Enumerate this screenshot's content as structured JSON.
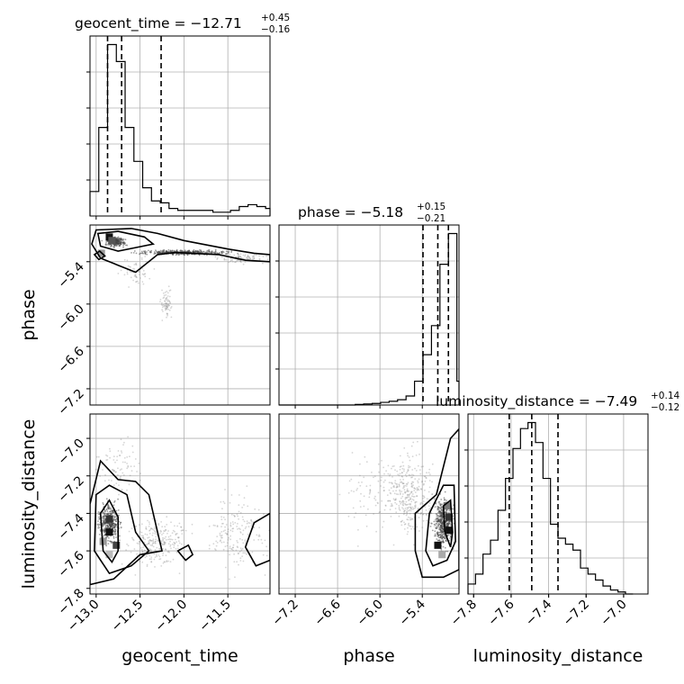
{
  "chart_data": {
    "type": "corner",
    "parameters": [
      "geocent_time",
      "phase",
      "luminosity_distance"
    ],
    "ranges": {
      "geocent_time": [
        -13.07,
        -11.02
      ],
      "phase": [
        -7.43,
        -4.88
      ],
      "luminosity_distance": [
        -7.83,
        -6.87
      ]
    },
    "ticks": {
      "geocent_time": [
        -13.0,
        -12.5,
        -12.0,
        -11.5
      ],
      "phase": [
        -7.2,
        -6.6,
        -6.0,
        -5.4
      ],
      "luminosity_distance": [
        -7.8,
        -7.6,
        -7.4,
        -7.2,
        -7.0
      ]
    },
    "tick_labels": {
      "geocent_time": [
        "−13.0",
        "−12.5",
        "−12.0",
        "−11.5"
      ],
      "phase": [
        "−7.2",
        "−6.6",
        "−6.0",
        "−5.4"
      ],
      "luminosity_distance": [
        "−7.8",
        "−7.6",
        "−7.4",
        "−7.2",
        "−7.0"
      ]
    },
    "titles": {
      "geocent_time": {
        "prefix": "geocent_time = −12.71",
        "plus": "+0.45",
        "minus": "−0.16"
      },
      "phase": {
        "prefix": "phase = −5.18",
        "plus": "+0.15",
        "minus": "−0.21"
      },
      "luminosity_distance": {
        "prefix": "luminosity_distance = −7.49",
        "plus": "+0.14",
        "minus": "−0.12"
      }
    },
    "quantiles": {
      "geocent_time": [
        -12.87,
        -12.71,
        -12.26
      ],
      "phase": [
        -5.39,
        -5.18,
        -5.03
      ],
      "luminosity_distance": [
        -7.61,
        -7.49,
        -7.35
      ]
    },
    "histograms": {
      "geocent_time": {
        "edges": [
          -13.07,
          -12.97,
          -12.87,
          -12.77,
          -12.67,
          -12.57,
          -12.47,
          -12.37,
          -12.27,
          -12.17,
          -12.07,
          -11.97,
          -11.87,
          -11.77,
          -11.67,
          -11.57,
          -11.47,
          -11.37,
          -11.27,
          -11.17,
          -11.07,
          -11.02
        ],
        "counts": [
          13,
          47,
          91,
          82,
          47,
          29,
          15,
          8,
          7,
          4,
          3,
          3,
          3,
          3,
          2,
          2,
          3,
          5,
          6,
          5,
          4
        ]
      },
      "phase": {
        "edges": [
          -7.43,
          -7.31,
          -7.19,
          -7.07,
          -6.95,
          -6.83,
          -6.71,
          -6.59,
          -6.47,
          -6.35,
          -6.23,
          -6.11,
          -5.99,
          -5.87,
          -5.75,
          -5.63,
          -5.51,
          -5.39,
          -5.27,
          -5.15,
          -5.03,
          -4.91,
          -4.88
        ],
        "counts": [
          0,
          0,
          0,
          0,
          0,
          0,
          0,
          0,
          0,
          1,
          2,
          3,
          5,
          7,
          10,
          17,
          45,
          95,
          150,
          266,
          324,
          45
        ]
      },
      "luminosity_distance": {
        "edges": [
          -7.83,
          -7.79,
          -7.75,
          -7.71,
          -7.67,
          -7.63,
          -7.59,
          -7.55,
          -7.51,
          -7.47,
          -7.43,
          -7.39,
          -7.35,
          -7.31,
          -7.27,
          -7.23,
          -7.19,
          -7.15,
          -7.11,
          -7.07,
          -7.03,
          -6.99,
          -6.95
        ],
        "counts": [
          5,
          10,
          20,
          27,
          42,
          58,
          73,
          83,
          86,
          76,
          58,
          35,
          28,
          25,
          22,
          13,
          10,
          7,
          4,
          2,
          1,
          0
        ]
      }
    },
    "xlabels": [
      "geocent_time",
      "phase",
      "luminosity_distance"
    ],
    "ylabels": [
      "phase",
      "luminosity_distance"
    ],
    "grid": true
  }
}
